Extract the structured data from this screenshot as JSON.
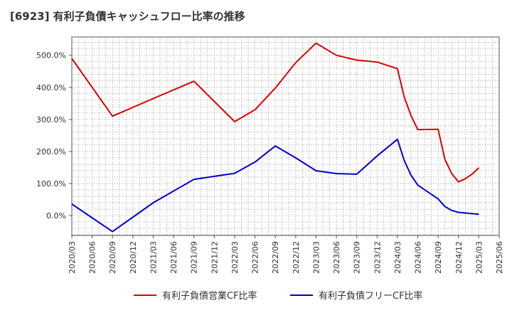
{
  "chart_data": {
    "type": "line",
    "title": "[6923]  有利子負債キャッシュフロー比率の推移",
    "xlabel": "",
    "ylabel": "",
    "x_ticks": [
      "2020/03",
      "2020/06",
      "2020/09",
      "2020/12",
      "2021/03",
      "2021/06",
      "2021/09",
      "2021/12",
      "2022/03",
      "2022/06",
      "2022/09",
      "2022/12",
      "2023/03",
      "2023/06",
      "2023/09",
      "2023/12",
      "2024/03",
      "2024/06",
      "2024/09",
      "2024/12",
      "2025/03",
      "2025/06"
    ],
    "y_ticks": [
      "0.0%",
      "100.0%",
      "200.0%",
      "300.0%",
      "400.0%",
      "500.0%"
    ],
    "y_tick_values": [
      0,
      100,
      200,
      300,
      400,
      500
    ],
    "ylim": [
      -62,
      557
    ],
    "xlim": [
      "2020/03",
      "2025/06"
    ],
    "grid": true,
    "legend_position": "bottom",
    "series": [
      {
        "name": "有利子負債営業CF比率",
        "color": "#dd0000",
        "points": [
          [
            "2020/03",
            490
          ],
          [
            "2020/09",
            310
          ],
          [
            "2021/03",
            365
          ],
          [
            "2021/09",
            419
          ],
          [
            "2022/03",
            293
          ],
          [
            "2022/06",
            330
          ],
          [
            "2022/09",
            398
          ],
          [
            "2022/12",
            477
          ],
          [
            "2023/03",
            538
          ],
          [
            "2023/06",
            500
          ],
          [
            "2023/09",
            485
          ],
          [
            "2023/12",
            479
          ],
          [
            "2024/03",
            458
          ],
          [
            "2024/04",
            370
          ],
          [
            "2024/05",
            312
          ],
          [
            "2024/06",
            268
          ],
          [
            "2024/09",
            269
          ],
          [
            "2024/10",
            175
          ],
          [
            "2024/11",
            131
          ],
          [
            "2024/12",
            105
          ],
          [
            "2025/01",
            115
          ],
          [
            "2025/02",
            129
          ],
          [
            "2025/03",
            149
          ]
        ]
      },
      {
        "name": "有利子負債フリーCF比率",
        "color": "#0000cc",
        "points": [
          [
            "2020/03",
            36
          ],
          [
            "2020/09",
            -50
          ],
          [
            "2021/03",
            40
          ],
          [
            "2021/09",
            113
          ],
          [
            "2022/03",
            132
          ],
          [
            "2022/06",
            167
          ],
          [
            "2022/09",
            217
          ],
          [
            "2022/12",
            180
          ],
          [
            "2023/03",
            140
          ],
          [
            "2023/06",
            131
          ],
          [
            "2023/09",
            129
          ],
          [
            "2023/12",
            186
          ],
          [
            "2024/03",
            238
          ],
          [
            "2024/04",
            172
          ],
          [
            "2024/05",
            126
          ],
          [
            "2024/06",
            95
          ],
          [
            "2024/09",
            52
          ],
          [
            "2024/10",
            28
          ],
          [
            "2024/11",
            16
          ],
          [
            "2024/12",
            10
          ],
          [
            "2025/03",
            4
          ]
        ]
      }
    ]
  }
}
